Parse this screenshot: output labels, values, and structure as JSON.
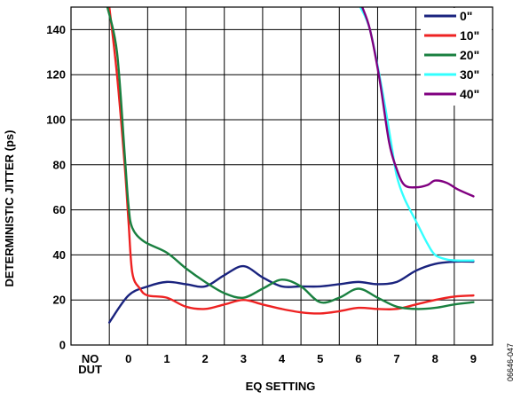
{
  "chart_data": {
    "type": "line",
    "xlabel": "EQ SETTING",
    "ylabel": "DETERMINISTIC JITTER (ps)",
    "figure_id": "06646-047",
    "categories": [
      "NO DUT",
      "0",
      "1",
      "2",
      "3",
      "4",
      "5",
      "6",
      "7",
      "8",
      "9"
    ],
    "category_lines": [
      [
        "NO",
        "DUT"
      ],
      [
        "0"
      ],
      [
        "1"
      ],
      [
        "2"
      ],
      [
        "3"
      ],
      [
        "4"
      ],
      [
        "5"
      ],
      [
        "6"
      ],
      [
        "7"
      ],
      [
        "8"
      ],
      [
        "9"
      ]
    ],
    "ylim": [
      0,
      150
    ],
    "yticks": [
      0,
      20,
      40,
      60,
      80,
      100,
      120,
      140
    ],
    "grid": true,
    "legend_position": "top-right",
    "series": [
      {
        "name": "0\"",
        "color": "#1a237e",
        "points": [
          [
            -0.5,
            10
          ],
          [
            0,
            22
          ],
          [
            0.5,
            26
          ],
          [
            1,
            28
          ],
          [
            1.5,
            27
          ],
          [
            2,
            26
          ],
          [
            2.5,
            31
          ],
          [
            3,
            35
          ],
          [
            3.5,
            30
          ],
          [
            4,
            26
          ],
          [
            4.5,
            26
          ],
          [
            5,
            26
          ],
          [
            5.5,
            27
          ],
          [
            6,
            28
          ],
          [
            6.5,
            27
          ],
          [
            7,
            28
          ],
          [
            7.5,
            33
          ],
          [
            8,
            36
          ],
          [
            8.5,
            37
          ],
          [
            9,
            37
          ]
        ]
      },
      {
        "name": "10\"",
        "color": "#ee2222",
        "points": [
          [
            -0.5,
            150
          ],
          [
            -0.3,
            120
          ],
          [
            -0.1,
            80
          ],
          [
            0,
            55
          ],
          [
            0.1,
            32
          ],
          [
            0.3,
            25
          ],
          [
            0.5,
            22
          ],
          [
            1,
            21
          ],
          [
            1.5,
            17
          ],
          [
            2,
            16
          ],
          [
            2.5,
            18
          ],
          [
            3,
            20
          ],
          [
            3.5,
            18
          ],
          [
            4,
            16
          ],
          [
            4.5,
            14.5
          ],
          [
            5,
            14
          ],
          [
            5.5,
            15
          ],
          [
            6,
            16.5
          ],
          [
            6.5,
            16
          ],
          [
            7,
            16
          ],
          [
            7.5,
            18
          ],
          [
            8,
            20
          ],
          [
            8.5,
            21.5
          ],
          [
            9,
            22
          ]
        ]
      },
      {
        "name": "20\"",
        "color": "#1a8040",
        "points": [
          [
            -0.55,
            150
          ],
          [
            -0.3,
            130
          ],
          [
            -0.1,
            85
          ],
          [
            0,
            62
          ],
          [
            0.1,
            52
          ],
          [
            0.4,
            46
          ],
          [
            1,
            41
          ],
          [
            1.5,
            34
          ],
          [
            2,
            28
          ],
          [
            2.5,
            23
          ],
          [
            3,
            21
          ],
          [
            3.5,
            25
          ],
          [
            4,
            29
          ],
          [
            4.5,
            26
          ],
          [
            5,
            19
          ],
          [
            5.5,
            21
          ],
          [
            6,
            25
          ],
          [
            6.5,
            21
          ],
          [
            7,
            17
          ],
          [
            7.5,
            16
          ],
          [
            8,
            16.5
          ],
          [
            8.5,
            18
          ],
          [
            9,
            19
          ]
        ]
      },
      {
        "name": "30\"",
        "color": "#33ffff",
        "points": [
          [
            6.05,
            150
          ],
          [
            6.3,
            140
          ],
          [
            6.6,
            115
          ],
          [
            6.85,
            90
          ],
          [
            7,
            75
          ],
          [
            7.2,
            65
          ],
          [
            7.5,
            55
          ],
          [
            7.8,
            45
          ],
          [
            8,
            40
          ],
          [
            8.3,
            38
          ],
          [
            8.6,
            37.5
          ],
          [
            9,
            37.5
          ]
        ]
      },
      {
        "name": "40\"",
        "color": "#800080",
        "points": [
          [
            6.1,
            150
          ],
          [
            6.3,
            140
          ],
          [
            6.55,
            118
          ],
          [
            6.8,
            90
          ],
          [
            7,
            78
          ],
          [
            7.2,
            71
          ],
          [
            7.5,
            70
          ],
          [
            7.8,
            71
          ],
          [
            8,
            73
          ],
          [
            8.3,
            72
          ],
          [
            8.6,
            69
          ],
          [
            9,
            66
          ]
        ]
      }
    ]
  }
}
